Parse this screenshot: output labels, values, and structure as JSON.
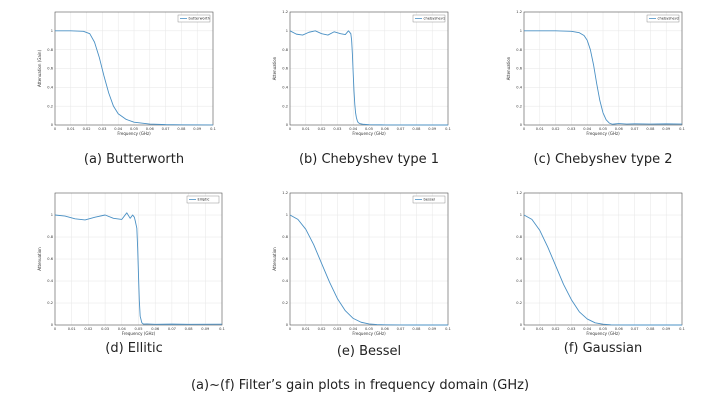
{
  "figure_caption": "(a)~(f) Filter’s gain plots in frequency domain (GHz)",
  "colors": {
    "series": "#4a90c4",
    "grid": "#e6e6e6",
    "axis": "#555555"
  },
  "chart_data": [
    {
      "type": "line",
      "caption": "(a) Butterworth",
      "xlabel": "Frequency (GHz)",
      "ylabel": "Attenuation (Gain)",
      "xlim": [
        0,
        0.1
      ],
      "ylim": [
        0,
        1.2
      ],
      "xticks": [
        "0",
        "0.01",
        "0.02",
        "0.03",
        "0.04",
        "0.05",
        "0.06",
        "0.07",
        "0.08",
        "0.09",
        "0.1"
      ],
      "yticks": [
        "0",
        "0.2",
        "0.4",
        "0.6",
        "0.8",
        "1"
      ],
      "legend": "butterworth",
      "legend_position": "top-right",
      "series": [
        {
          "name": "butterworth",
          "x": [
            0,
            0.01,
            0.018,
            0.022,
            0.025,
            0.028,
            0.031,
            0.034,
            0.037,
            0.04,
            0.045,
            0.05,
            0.06,
            0.07,
            0.08,
            0.1
          ],
          "y": [
            1.0,
            1.0,
            0.995,
            0.97,
            0.88,
            0.72,
            0.52,
            0.34,
            0.2,
            0.12,
            0.06,
            0.03,
            0.01,
            0.004,
            0.002,
            0.001
          ]
        }
      ]
    },
    {
      "type": "line",
      "caption": "(b) Chebyshev type 1",
      "xlabel": "Frequency (GHz)",
      "ylabel": "Attenuation",
      "xlim": [
        0,
        0.1
      ],
      "ylim": [
        0,
        1.2
      ],
      "xticks": [
        "0",
        "0.01",
        "0.02",
        "0.03",
        "0.04",
        "0.05",
        "0.06",
        "0.07",
        "0.08",
        "0.09",
        "0.1"
      ],
      "yticks": [
        "0",
        "0.2",
        "0.4",
        "0.6",
        "0.8",
        "1",
        "1.2"
      ],
      "legend": "chebyshev1",
      "legend_position": "top-right",
      "series": [
        {
          "name": "chebyshev1",
          "x": [
            0,
            0.004,
            0.008,
            0.012,
            0.016,
            0.02,
            0.024,
            0.028,
            0.032,
            0.035,
            0.037,
            0.0385,
            0.039,
            0.0395,
            0.04,
            0.0405,
            0.041,
            0.0415,
            0.042,
            0.0425,
            0.043,
            0.044,
            0.046,
            0.05,
            0.06,
            0.1
          ],
          "y": [
            1.0,
            0.965,
            0.955,
            0.985,
            1.0,
            0.97,
            0.955,
            0.99,
            0.97,
            0.96,
            1.0,
            0.97,
            0.9,
            0.75,
            0.55,
            0.36,
            0.22,
            0.13,
            0.08,
            0.05,
            0.03,
            0.015,
            0.008,
            0.003,
            0.001,
            0.0
          ]
        }
      ]
    },
    {
      "type": "line",
      "caption": "(c) Chebyshev type 2",
      "xlabel": "Frequency (GHz)",
      "ylabel": "Attenuation",
      "xlim": [
        0,
        0.1
      ],
      "ylim": [
        0,
        1.2
      ],
      "xticks": [
        "0",
        "0.01",
        "0.02",
        "0.03",
        "0.04",
        "0.05",
        "0.06",
        "0.07",
        "0.08",
        "0.09",
        "0.1"
      ],
      "yticks": [
        "0",
        "0.2",
        "0.4",
        "0.6",
        "0.8",
        "1",
        "1.2"
      ],
      "legend": "chebyshev2",
      "legend_position": "top-right",
      "series": [
        {
          "name": "chebyshev2",
          "x": [
            0,
            0.02,
            0.03,
            0.035,
            0.038,
            0.04,
            0.042,
            0.044,
            0.046,
            0.048,
            0.05,
            0.052,
            0.054,
            0.056,
            0.058,
            0.06,
            0.065,
            0.07,
            0.08,
            0.09,
            0.1
          ],
          "y": [
            1.0,
            1.0,
            0.995,
            0.98,
            0.95,
            0.9,
            0.8,
            0.64,
            0.44,
            0.26,
            0.13,
            0.055,
            0.02,
            0.008,
            0.012,
            0.015,
            0.01,
            0.012,
            0.01,
            0.012,
            0.01
          ]
        }
      ]
    },
    {
      "type": "line",
      "caption": "(d) Ellitic",
      "xlabel": "Frequency (GHz)",
      "ylabel": "Attenuation",
      "xlim": [
        0,
        0.1
      ],
      "ylim": [
        0,
        1.2
      ],
      "xticks": [
        "0",
        "0.01",
        "0.02",
        "0.03",
        "0.04",
        "0.05",
        "0.06",
        "0.07",
        "0.08",
        "0.09",
        "0.1"
      ],
      "yticks": [
        "0",
        "0.2",
        "0.4",
        "0.6",
        "0.8",
        "1"
      ],
      "legend": "Elliptic",
      "legend_position": "top-right",
      "series": [
        {
          "name": "Elliptic",
          "x": [
            0,
            0.006,
            0.012,
            0.018,
            0.024,
            0.03,
            0.035,
            0.04,
            0.043,
            0.045,
            0.0465,
            0.0475,
            0.048,
            0.049,
            0.0495,
            0.05,
            0.0505,
            0.051,
            0.052,
            0.053,
            0.055,
            0.06,
            0.07,
            0.08,
            0.1
          ],
          "y": [
            1.0,
            0.99,
            0.965,
            0.955,
            0.98,
            1.0,
            0.97,
            0.96,
            1.02,
            0.97,
            1.0,
            0.98,
            0.95,
            0.88,
            0.7,
            0.45,
            0.22,
            0.08,
            0.02,
            0.008,
            0.01,
            0.006,
            0.008,
            0.006,
            0.007
          ]
        }
      ]
    },
    {
      "type": "line",
      "caption": "(e) Bessel",
      "xlabel": "Frequency (GHz)",
      "ylabel": "Attenuation",
      "xlim": [
        0,
        0.1
      ],
      "ylim": [
        0,
        1.2
      ],
      "xticks": [
        "0",
        "0.01",
        "0.02",
        "0.03",
        "0.04",
        "0.05",
        "0.06",
        "0.07",
        "0.08",
        "0.09",
        "0.1"
      ],
      "yticks": [
        "0",
        "0.2",
        "0.4",
        "0.6",
        "0.8",
        "1",
        "1.2"
      ],
      "legend": "bessel",
      "legend_position": "top-right",
      "series": [
        {
          "name": "bessel",
          "x": [
            0,
            0.005,
            0.01,
            0.015,
            0.02,
            0.025,
            0.03,
            0.035,
            0.04,
            0.045,
            0.05,
            0.055,
            0.06,
            0.07,
            0.08,
            0.1
          ],
          "y": [
            1.0,
            0.96,
            0.87,
            0.73,
            0.56,
            0.39,
            0.24,
            0.13,
            0.06,
            0.025,
            0.01,
            0.004,
            0.002,
            0.001,
            0.0,
            0.0
          ]
        }
      ]
    },
    {
      "type": "line",
      "caption": "(f) Gaussian",
      "xlabel": "Frequency (GHz)",
      "ylabel": "",
      "xlim": [
        0,
        0.1
      ],
      "ylim": [
        0,
        1.2
      ],
      "xticks": [
        "0",
        "0.01",
        "0.02",
        "0.03",
        "0.04",
        "0.05",
        "0.06",
        "0.07",
        "0.08",
        "0.09",
        "0.1"
      ],
      "yticks": [
        "0",
        "0.2",
        "0.4",
        "0.6",
        "0.8",
        "1",
        "1.2"
      ],
      "legend": "",
      "legend_position": "",
      "series": [
        {
          "name": "",
          "x": [
            0,
            0.005,
            0.01,
            0.015,
            0.02,
            0.025,
            0.03,
            0.035,
            0.04,
            0.045,
            0.05,
            0.055,
            0.06,
            0.07,
            0.08,
            0.1
          ],
          "y": [
            1.0,
            0.96,
            0.86,
            0.71,
            0.54,
            0.37,
            0.23,
            0.12,
            0.055,
            0.02,
            0.007,
            0.002,
            0.001,
            0.0,
            0.0,
            0.0
          ]
        }
      ]
    }
  ]
}
